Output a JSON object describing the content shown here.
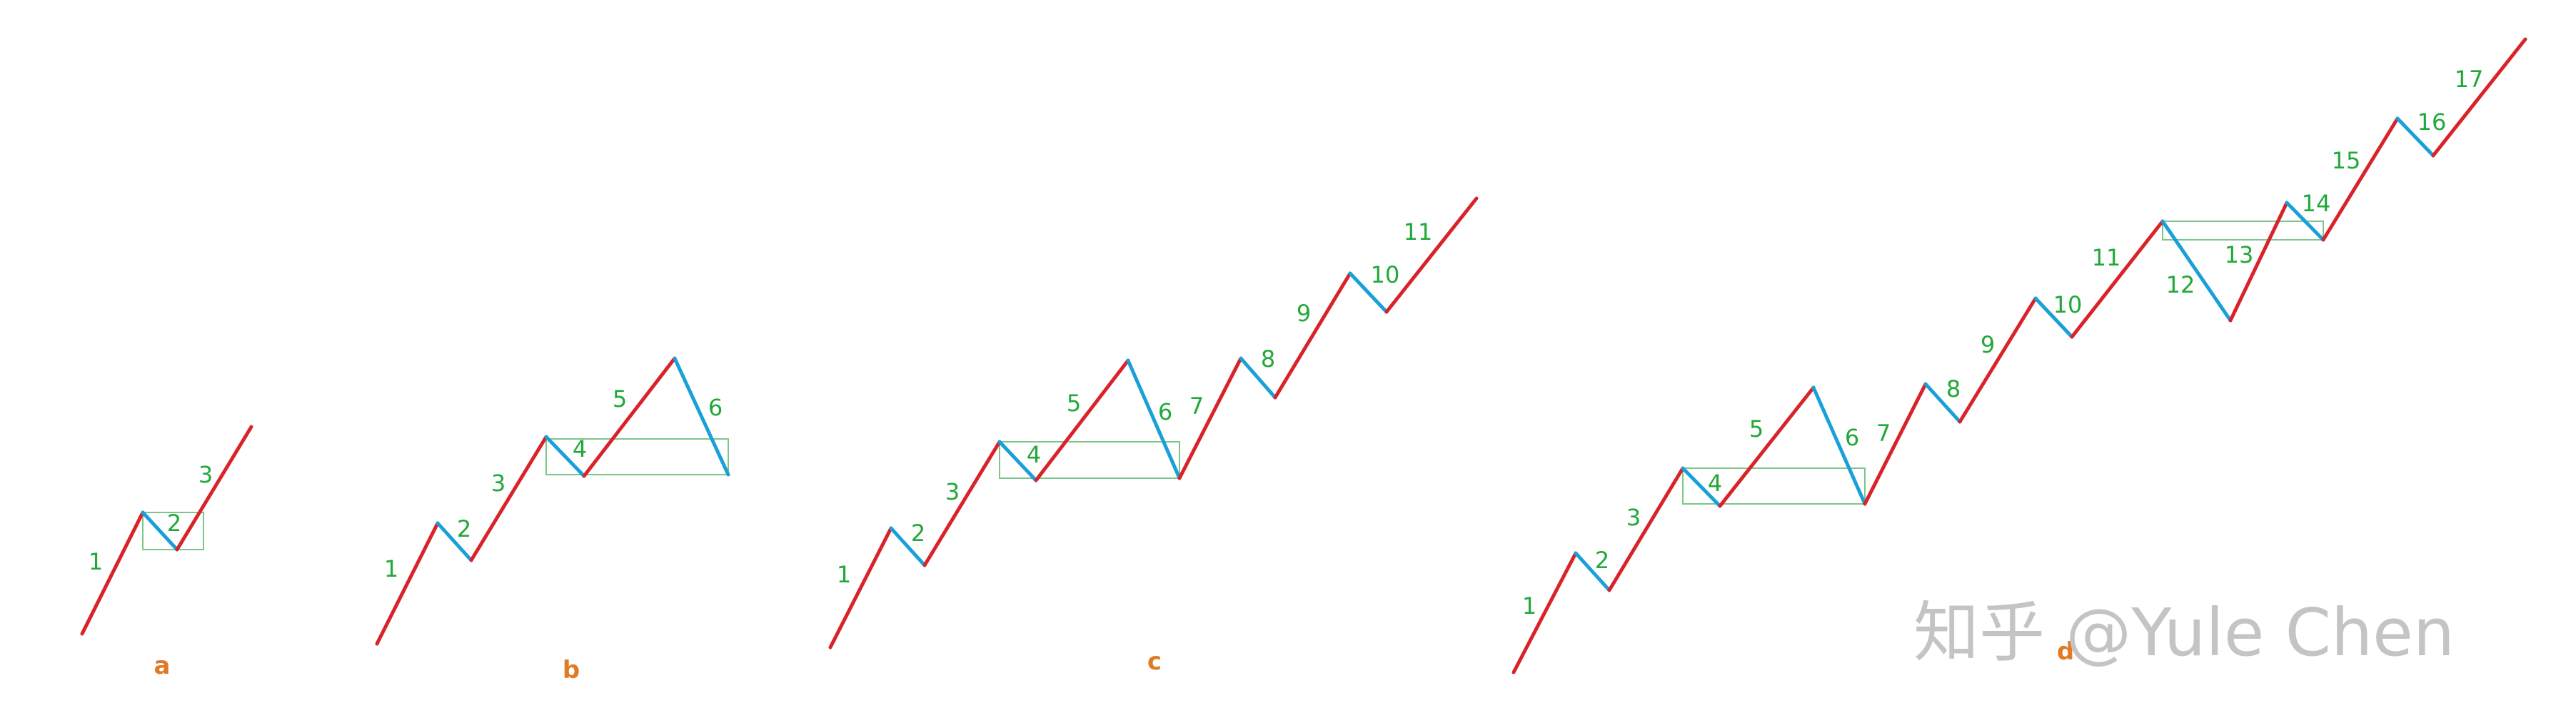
{
  "colors": {
    "up_stroke": "#d8232a",
    "down_stroke": "#1aa0d8",
    "label": "#22a83a",
    "box_stroke": "#7cc68a",
    "panel_label": "#e07b25",
    "watermark": "#c4c4c4"
  },
  "panels": [
    {
      "label": "a",
      "stroke_labels": [
        "1",
        "2",
        "3"
      ],
      "stroke_directions": [
        "up",
        "down",
        "up"
      ]
    },
    {
      "label": "b",
      "stroke_labels": [
        "1",
        "2",
        "3",
        "4",
        "5",
        "6"
      ],
      "stroke_directions": [
        "up",
        "down",
        "up",
        "down",
        "up",
        "down"
      ]
    },
    {
      "label": "c",
      "stroke_labels": [
        "1",
        "2",
        "3",
        "4",
        "5",
        "6",
        "7",
        "8",
        "9",
        "10",
        "11"
      ],
      "stroke_directions": [
        "up",
        "down",
        "up",
        "down",
        "up",
        "down",
        "up",
        "down",
        "up",
        "down",
        "up"
      ]
    },
    {
      "label": "d",
      "stroke_labels": [
        "1",
        "2",
        "3",
        "4",
        "5",
        "6",
        "7",
        "8",
        "9",
        "10",
        "11",
        "12",
        "13",
        "14",
        "15",
        "16",
        "17"
      ],
      "stroke_directions": [
        "up",
        "down",
        "up",
        "down",
        "up",
        "down",
        "up",
        "down",
        "up",
        "down",
        "up",
        "down",
        "up",
        "down",
        "up",
        "down",
        "up"
      ]
    }
  ],
  "watermark": "知乎 @Yule Chen"
}
